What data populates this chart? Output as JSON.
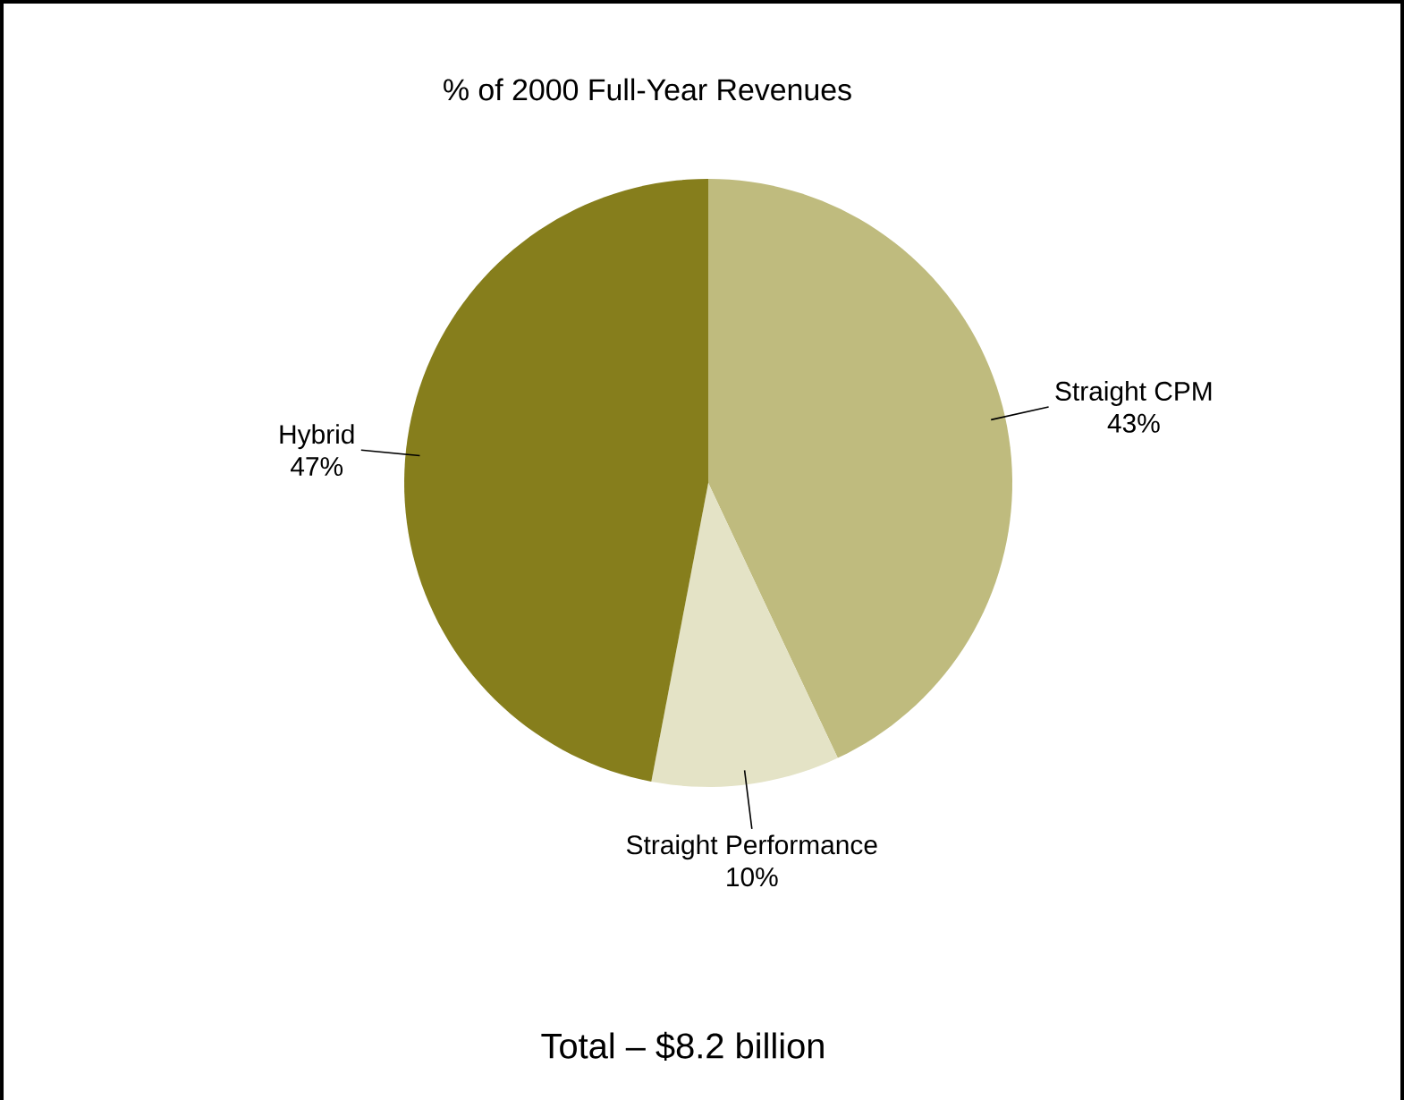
{
  "chart_data": {
    "type": "pie",
    "title": "% of 2000 Full-Year Revenues",
    "categories": [
      "Straight CPM",
      "Straight Performance",
      "Hybrid"
    ],
    "values": [
      43,
      10,
      47
    ],
    "colors": [
      "#bfbb7e",
      "#e4e3c6",
      "#867e1c"
    ],
    "value_labels": [
      "43%",
      "10%",
      "47%"
    ],
    "annotations": [
      "Total – $8.2 billion"
    ]
  }
}
